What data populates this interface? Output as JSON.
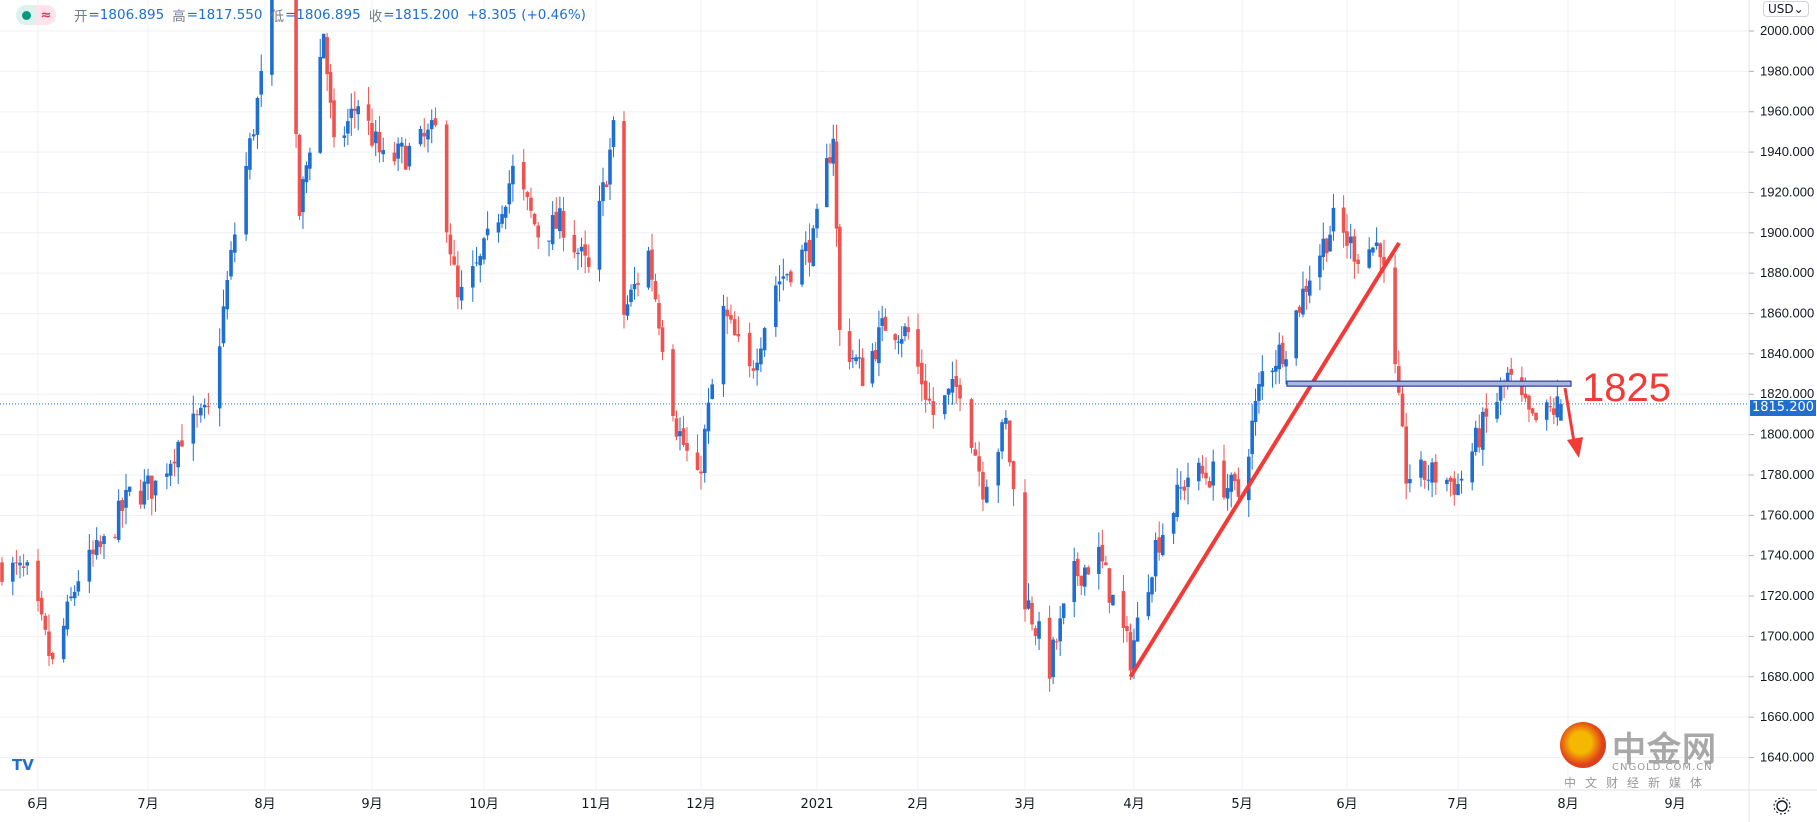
{
  "legend": {
    "open_label": "开",
    "open": "=1806.895",
    "high_label": "高",
    "high": "=1817.550",
    "low_label": "低",
    "low": "=1806.895",
    "close_label": "收",
    "close": "=1815.200",
    "change": "+8.305 (+0.46%)",
    "status_icon": "green-dot-icon",
    "wave_icon": "≈"
  },
  "currency": "USD⌄",
  "current_price": "1815.200",
  "annotation": {
    "level_text": "1825",
    "color": "#f23b36"
  },
  "watermark": {
    "name": "中金网",
    "domain": "CNGOLD.COM.CN",
    "slogan": "中文财经新媒体"
  },
  "tv_logo": "TV",
  "colors": {
    "up": "#1e6fd0",
    "down": "#ef5350",
    "grid": "#eef0f6",
    "price_line": "#1e6fd0"
  },
  "chart_data": {
    "type": "candlestick",
    "yaxis_ticks": [
      "2000.000",
      "1980.000",
      "1960.000",
      "1940.000",
      "1920.000",
      "1900.000",
      "1880.000",
      "1860.000",
      "1840.000",
      "1820.000",
      "1800.000",
      "1780.000",
      "1760.000",
      "1740.000",
      "1720.000",
      "1700.000",
      "1680.000",
      "1660.000",
      "1640.000"
    ],
    "ylim": [
      1630,
      2010
    ],
    "xaxis_ticks": [
      "6月",
      "7月",
      "8月",
      "9月",
      "10月",
      "11月",
      "12月",
      "2021",
      "2月",
      "3月",
      "4月",
      "5月",
      "6月",
      "7月",
      "8月",
      "9月"
    ],
    "grid": true,
    "last_bar": {
      "open": 1806.895,
      "high": 1817.55,
      "low": 1806.895,
      "close": 1815.2
    },
    "close_path": [
      [
        "2020-05-22",
        1735
      ],
      [
        "2020-05-29",
        1730
      ],
      [
        "2020-06-05",
        1685
      ],
      [
        "2020-06-12",
        1730
      ],
      [
        "2020-06-19",
        1745
      ],
      [
        "2020-06-26",
        1770
      ],
      [
        "2020-07-03",
        1775
      ],
      [
        "2020-07-10",
        1800
      ],
      [
        "2020-07-17",
        1810
      ],
      [
        "2020-07-24",
        1900
      ],
      [
        "2020-07-31",
        1975
      ],
      [
        "2020-08-06",
        2065
      ],
      [
        "2020-08-11",
        1910
      ],
      [
        "2020-08-14",
        1945
      ],
      [
        "2020-08-18",
        2000
      ],
      [
        "2020-08-21",
        1940
      ],
      [
        "2020-08-28",
        1965
      ],
      [
        "2020-09-04",
        1935
      ],
      [
        "2020-09-11",
        1940
      ],
      [
        "2020-09-18",
        1950
      ],
      [
        "2020-09-24",
        1865
      ],
      [
        "2020-09-30",
        1885
      ],
      [
        "2020-10-09",
        1930
      ],
      [
        "2020-10-16",
        1900
      ],
      [
        "2020-10-23",
        1905
      ],
      [
        "2020-10-30",
        1880
      ],
      [
        "2020-11-06",
        1950
      ],
      [
        "2020-11-09",
        1860
      ],
      [
        "2020-11-16",
        1890
      ],
      [
        "2020-11-24",
        1805
      ],
      [
        "2020-11-30",
        1775
      ],
      [
        "2020-12-07",
        1860
      ],
      [
        "2020-12-14",
        1830
      ],
      [
        "2020-12-21",
        1875
      ],
      [
        "2020-12-31",
        1895
      ],
      [
        "2021-01-06",
        1950
      ],
      [
        "2021-01-08",
        1850
      ],
      [
        "2021-01-15",
        1830
      ],
      [
        "2021-01-22",
        1855
      ],
      [
        "2021-01-29",
        1850
      ],
      [
        "2021-02-05",
        1810
      ],
      [
        "2021-02-12",
        1825
      ],
      [
        "2021-02-18",
        1775
      ],
      [
        "2021-02-24",
        1805
      ],
      [
        "2021-03-01",
        1720
      ],
      [
        "2021-03-08",
        1685
      ],
      [
        "2021-03-15",
        1730
      ],
      [
        "2021-03-22",
        1740
      ],
      [
        "2021-03-31",
        1690
      ],
      [
        "2021-04-07",
        1745
      ],
      [
        "2021-04-16",
        1780
      ],
      [
        "2021-04-23",
        1780
      ],
      [
        "2021-04-30",
        1770
      ],
      [
        "2021-05-07",
        1830
      ],
      [
        "2021-05-14",
        1845
      ],
      [
        "2021-05-21",
        1880
      ],
      [
        "2021-05-28",
        1905
      ],
      [
        "2021-06-04",
        1890
      ],
      [
        "2021-06-10",
        1895
      ],
      [
        "2021-06-17",
        1780
      ],
      [
        "2021-06-25",
        1780
      ],
      [
        "2021-07-01",
        1775
      ],
      [
        "2021-07-07",
        1800
      ],
      [
        "2021-07-15",
        1828
      ],
      [
        "2021-07-22",
        1805
      ],
      [
        "2021-07-30",
        1815.2
      ]
    ],
    "horizontal_level": 1825,
    "trendline": [
      [
        "2021-03-31",
        1680
      ],
      [
        "2021-06-14",
        1895
      ]
    ]
  }
}
